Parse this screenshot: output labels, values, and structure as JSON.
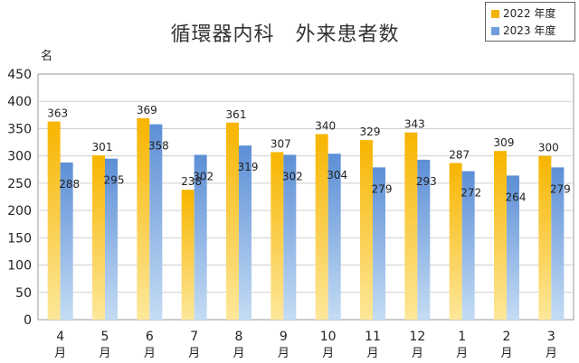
{
  "chart_data": {
    "type": "bar",
    "title": "循環器内科　外来患者数",
    "ylabel": "名",
    "categories": [
      "4月",
      "5月",
      "6月",
      "7月",
      "8月",
      "9月",
      "10月",
      "11月",
      "12月",
      "1月",
      "2月",
      "3月"
    ],
    "category_parts": [
      [
        "4",
        "月"
      ],
      [
        "5",
        "月"
      ],
      [
        "6",
        "月"
      ],
      [
        "7",
        "月"
      ],
      [
        "8",
        "月"
      ],
      [
        "9",
        "月"
      ],
      [
        "10",
        "月"
      ],
      [
        "11",
        "月"
      ],
      [
        "12",
        "月"
      ],
      [
        "1",
        "月"
      ],
      [
        "2",
        "月"
      ],
      [
        "3",
        "月"
      ]
    ],
    "series": [
      {
        "name": "2022 年度",
        "color": "#f5b200",
        "values": [
          363,
          301,
          369,
          238,
          361,
          307,
          340,
          329,
          343,
          287,
          309,
          300
        ]
      },
      {
        "name": "2023 年度",
        "color": "#6d9edb",
        "values": [
          288,
          295,
          358,
          302,
          319,
          302,
          304,
          279,
          293,
          272,
          264,
          279
        ]
      }
    ],
    "ylim": [
      0,
      450
    ],
    "yticks": [
      0,
      50,
      100,
      150,
      200,
      250,
      300,
      350,
      400,
      450
    ],
    "grid": true,
    "legend_position": "top-right"
  }
}
